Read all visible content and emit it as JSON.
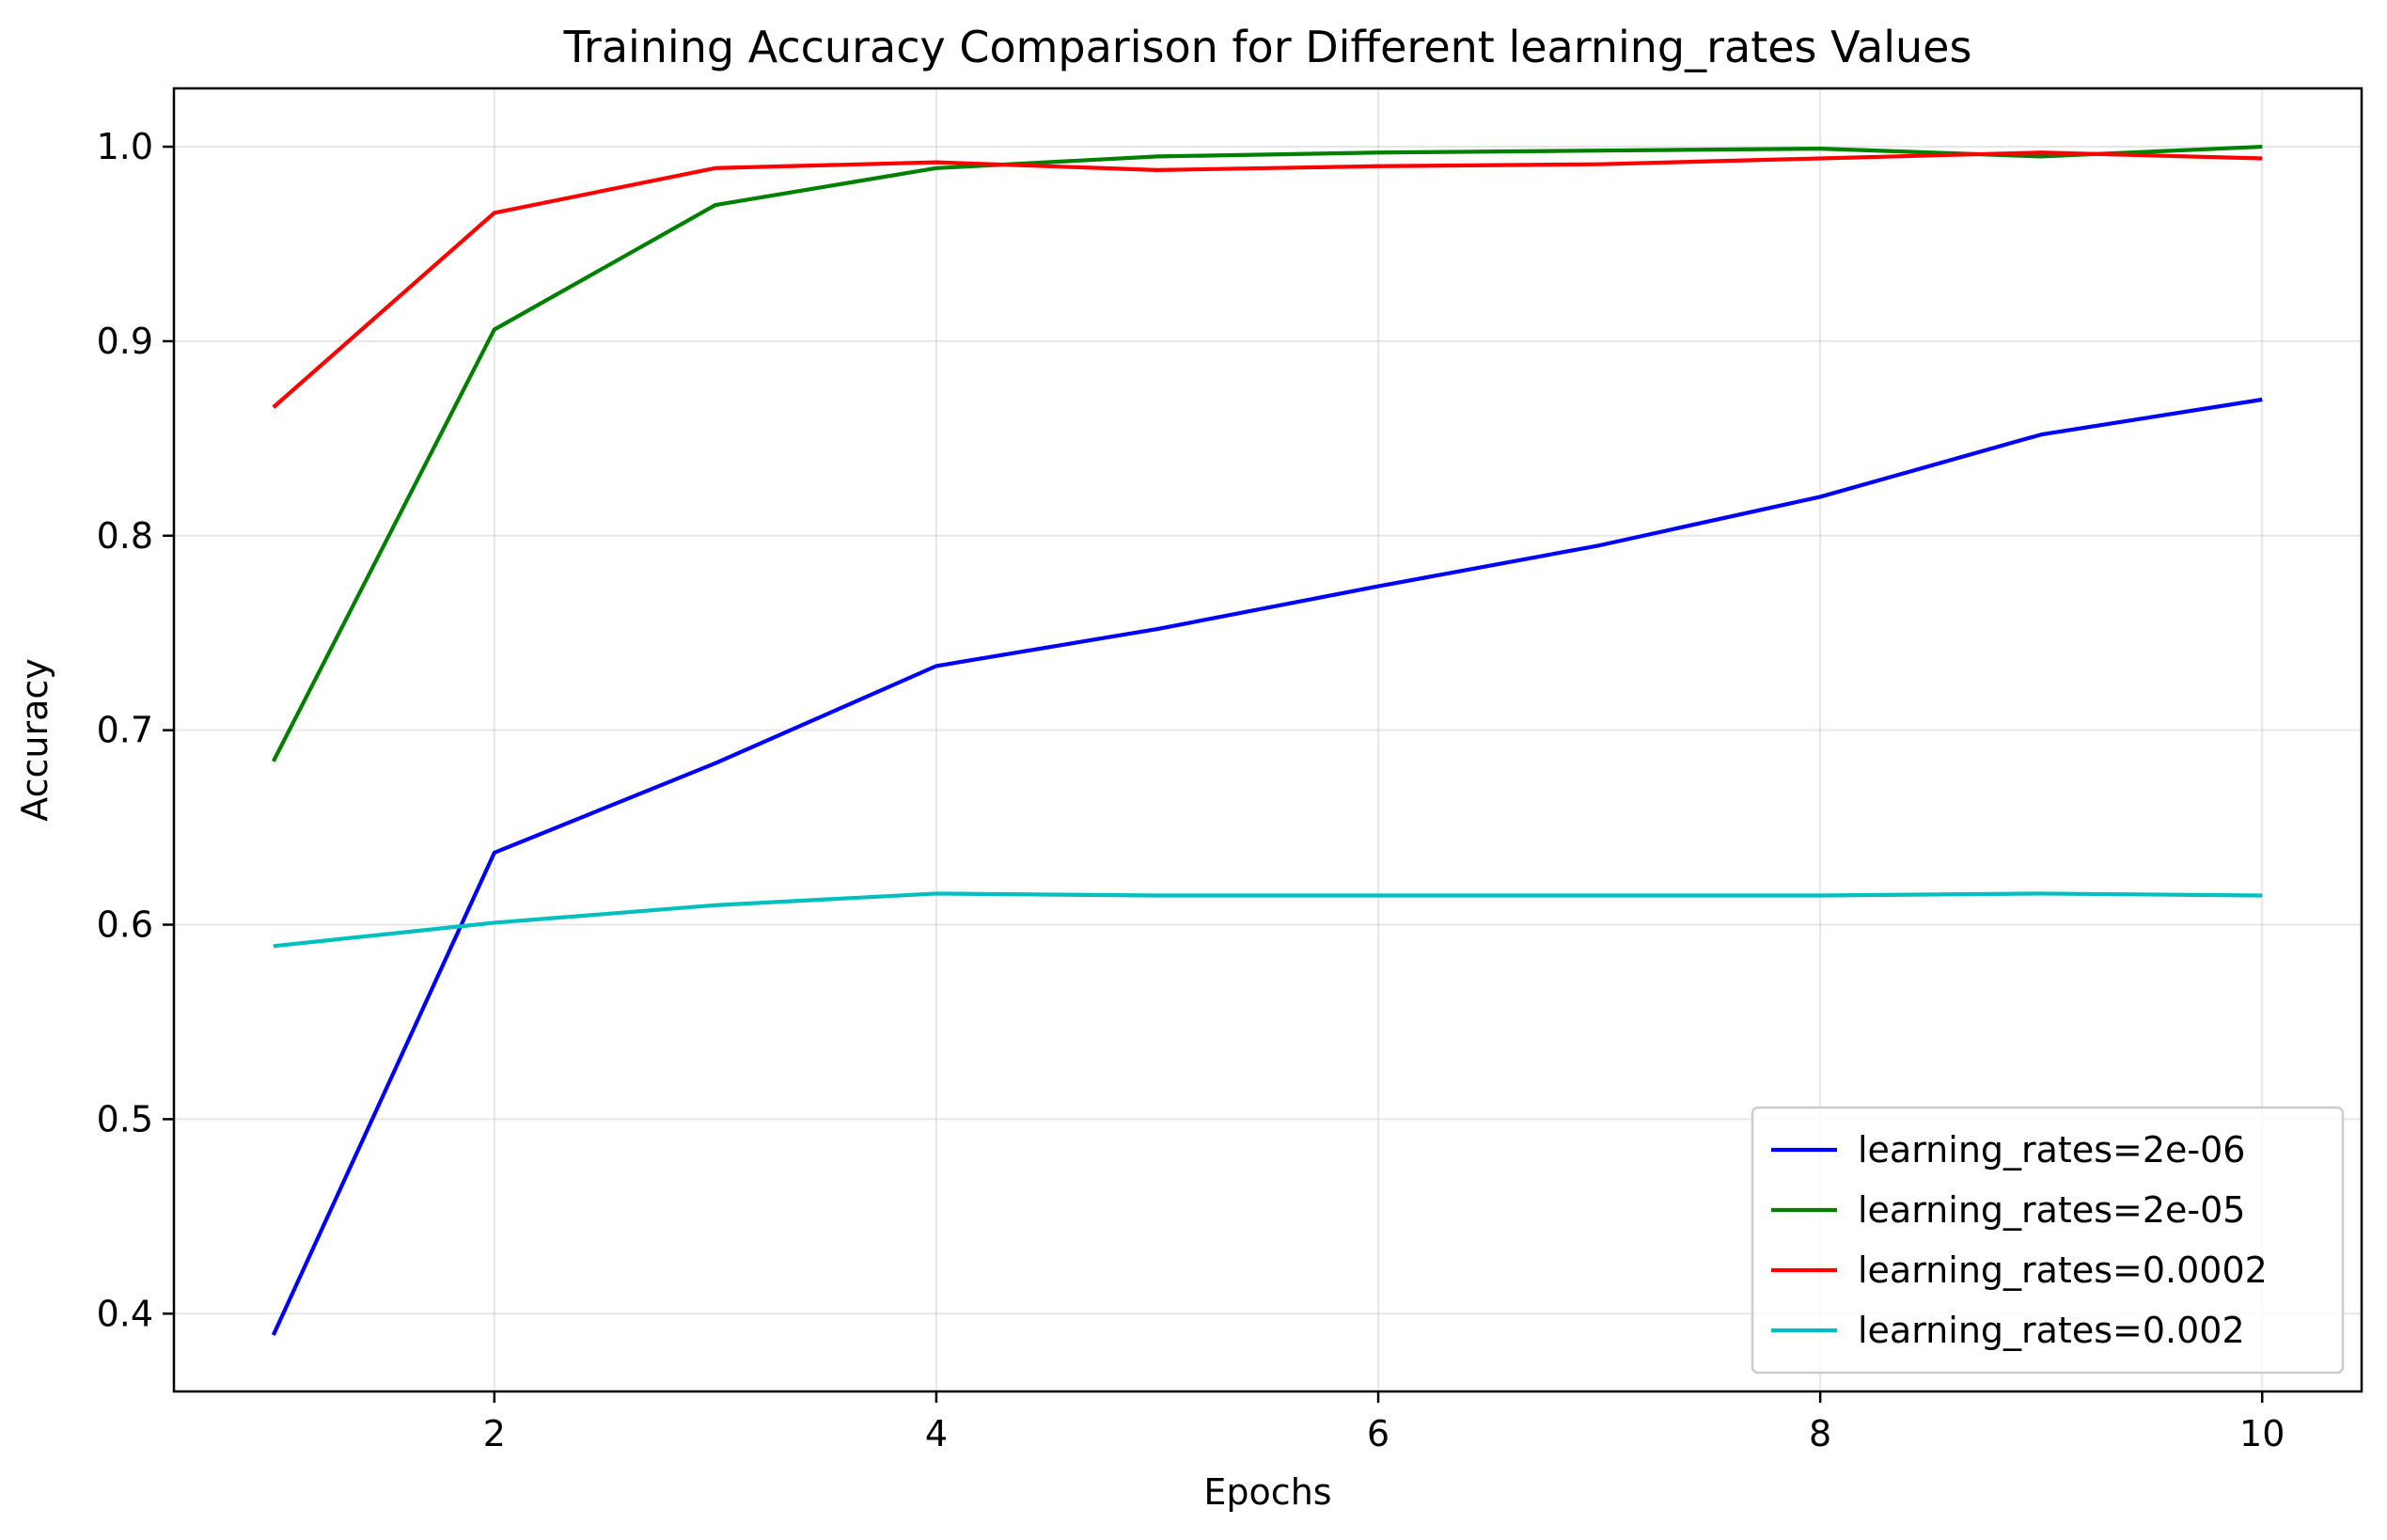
{
  "chart_data": {
    "type": "line",
    "title": "Training Accuracy Comparison for Different learning_rates Values",
    "xlabel": "Epochs",
    "ylabel": "Accuracy",
    "x": [
      1,
      2,
      3,
      4,
      5,
      6,
      7,
      8,
      9,
      10
    ],
    "xlim": [
      0.55,
      10.45
    ],
    "ylim": [
      0.36,
      1.03
    ],
    "xticks": [
      2,
      4,
      6,
      8,
      10
    ],
    "yticks": [
      0.4,
      0.5,
      0.6,
      0.7,
      0.8,
      0.9,
      1.0
    ],
    "ytick_labels": [
      "0.4",
      "0.5",
      "0.6",
      "0.7",
      "0.8",
      "0.9",
      "1.0"
    ],
    "grid": true,
    "legend_position": "lower-right",
    "series": [
      {
        "name": "learning_rates=2e-06",
        "color": "#0000ff",
        "values": [
          0.389,
          0.637,
          0.683,
          0.733,
          0.752,
          0.774,
          0.795,
          0.82,
          0.852,
          0.87
        ]
      },
      {
        "name": "learning_rates=2e-05",
        "color": "#008000",
        "values": [
          0.684,
          0.906,
          0.97,
          0.989,
          0.995,
          0.997,
          0.998,
          0.999,
          0.995,
          1.0
        ]
      },
      {
        "name": "learning_rates=0.0002",
        "color": "#ff0000",
        "values": [
          0.866,
          0.966,
          0.989,
          0.992,
          0.988,
          0.99,
          0.991,
          0.994,
          0.997,
          0.994
        ]
      },
      {
        "name": "learning_rates=0.002",
        "color": "#00bfbf",
        "values": [
          0.589,
          0.601,
          0.61,
          0.616,
          0.615,
          0.615,
          0.615,
          0.615,
          0.616,
          0.615
        ]
      }
    ]
  }
}
